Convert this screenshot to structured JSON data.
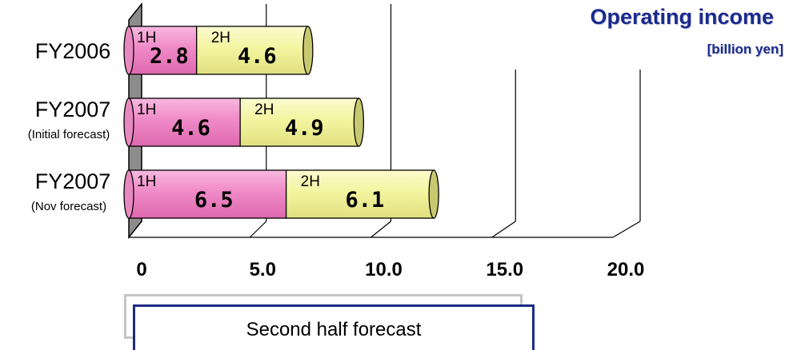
{
  "chart_data": {
    "type": "bar",
    "orientation": "horizontal",
    "stacked": true,
    "title": "Operating income",
    "unit": "[billion yen]",
    "categories": [
      {
        "label": "FY2006",
        "sublabel": ""
      },
      {
        "label": "FY2007",
        "sublabel": "(Initial forecast)"
      },
      {
        "label": "FY2007",
        "sublabel": "(Nov forecast)"
      }
    ],
    "series": [
      {
        "name": "1H",
        "color": "#f08ac8",
        "values": [
          2.8,
          4.6,
          6.5
        ],
        "value_labels": [
          "2.8",
          "4.6",
          "6.5"
        ]
      },
      {
        "name": "2H",
        "color": "#f4f4a0",
        "values": [
          4.6,
          4.9,
          6.1
        ],
        "value_labels": [
          "4.6",
          "4.9",
          "6.1"
        ]
      }
    ],
    "x_ticks": [
      "0",
      "5.0",
      "10.0",
      "15.0",
      "20.0"
    ],
    "x_tick_values": [
      0,
      5,
      10,
      15,
      20
    ],
    "xlim": [
      0,
      20
    ],
    "grid": true,
    "legend": {
      "label": "Second half forecast",
      "position": "bottom"
    }
  }
}
